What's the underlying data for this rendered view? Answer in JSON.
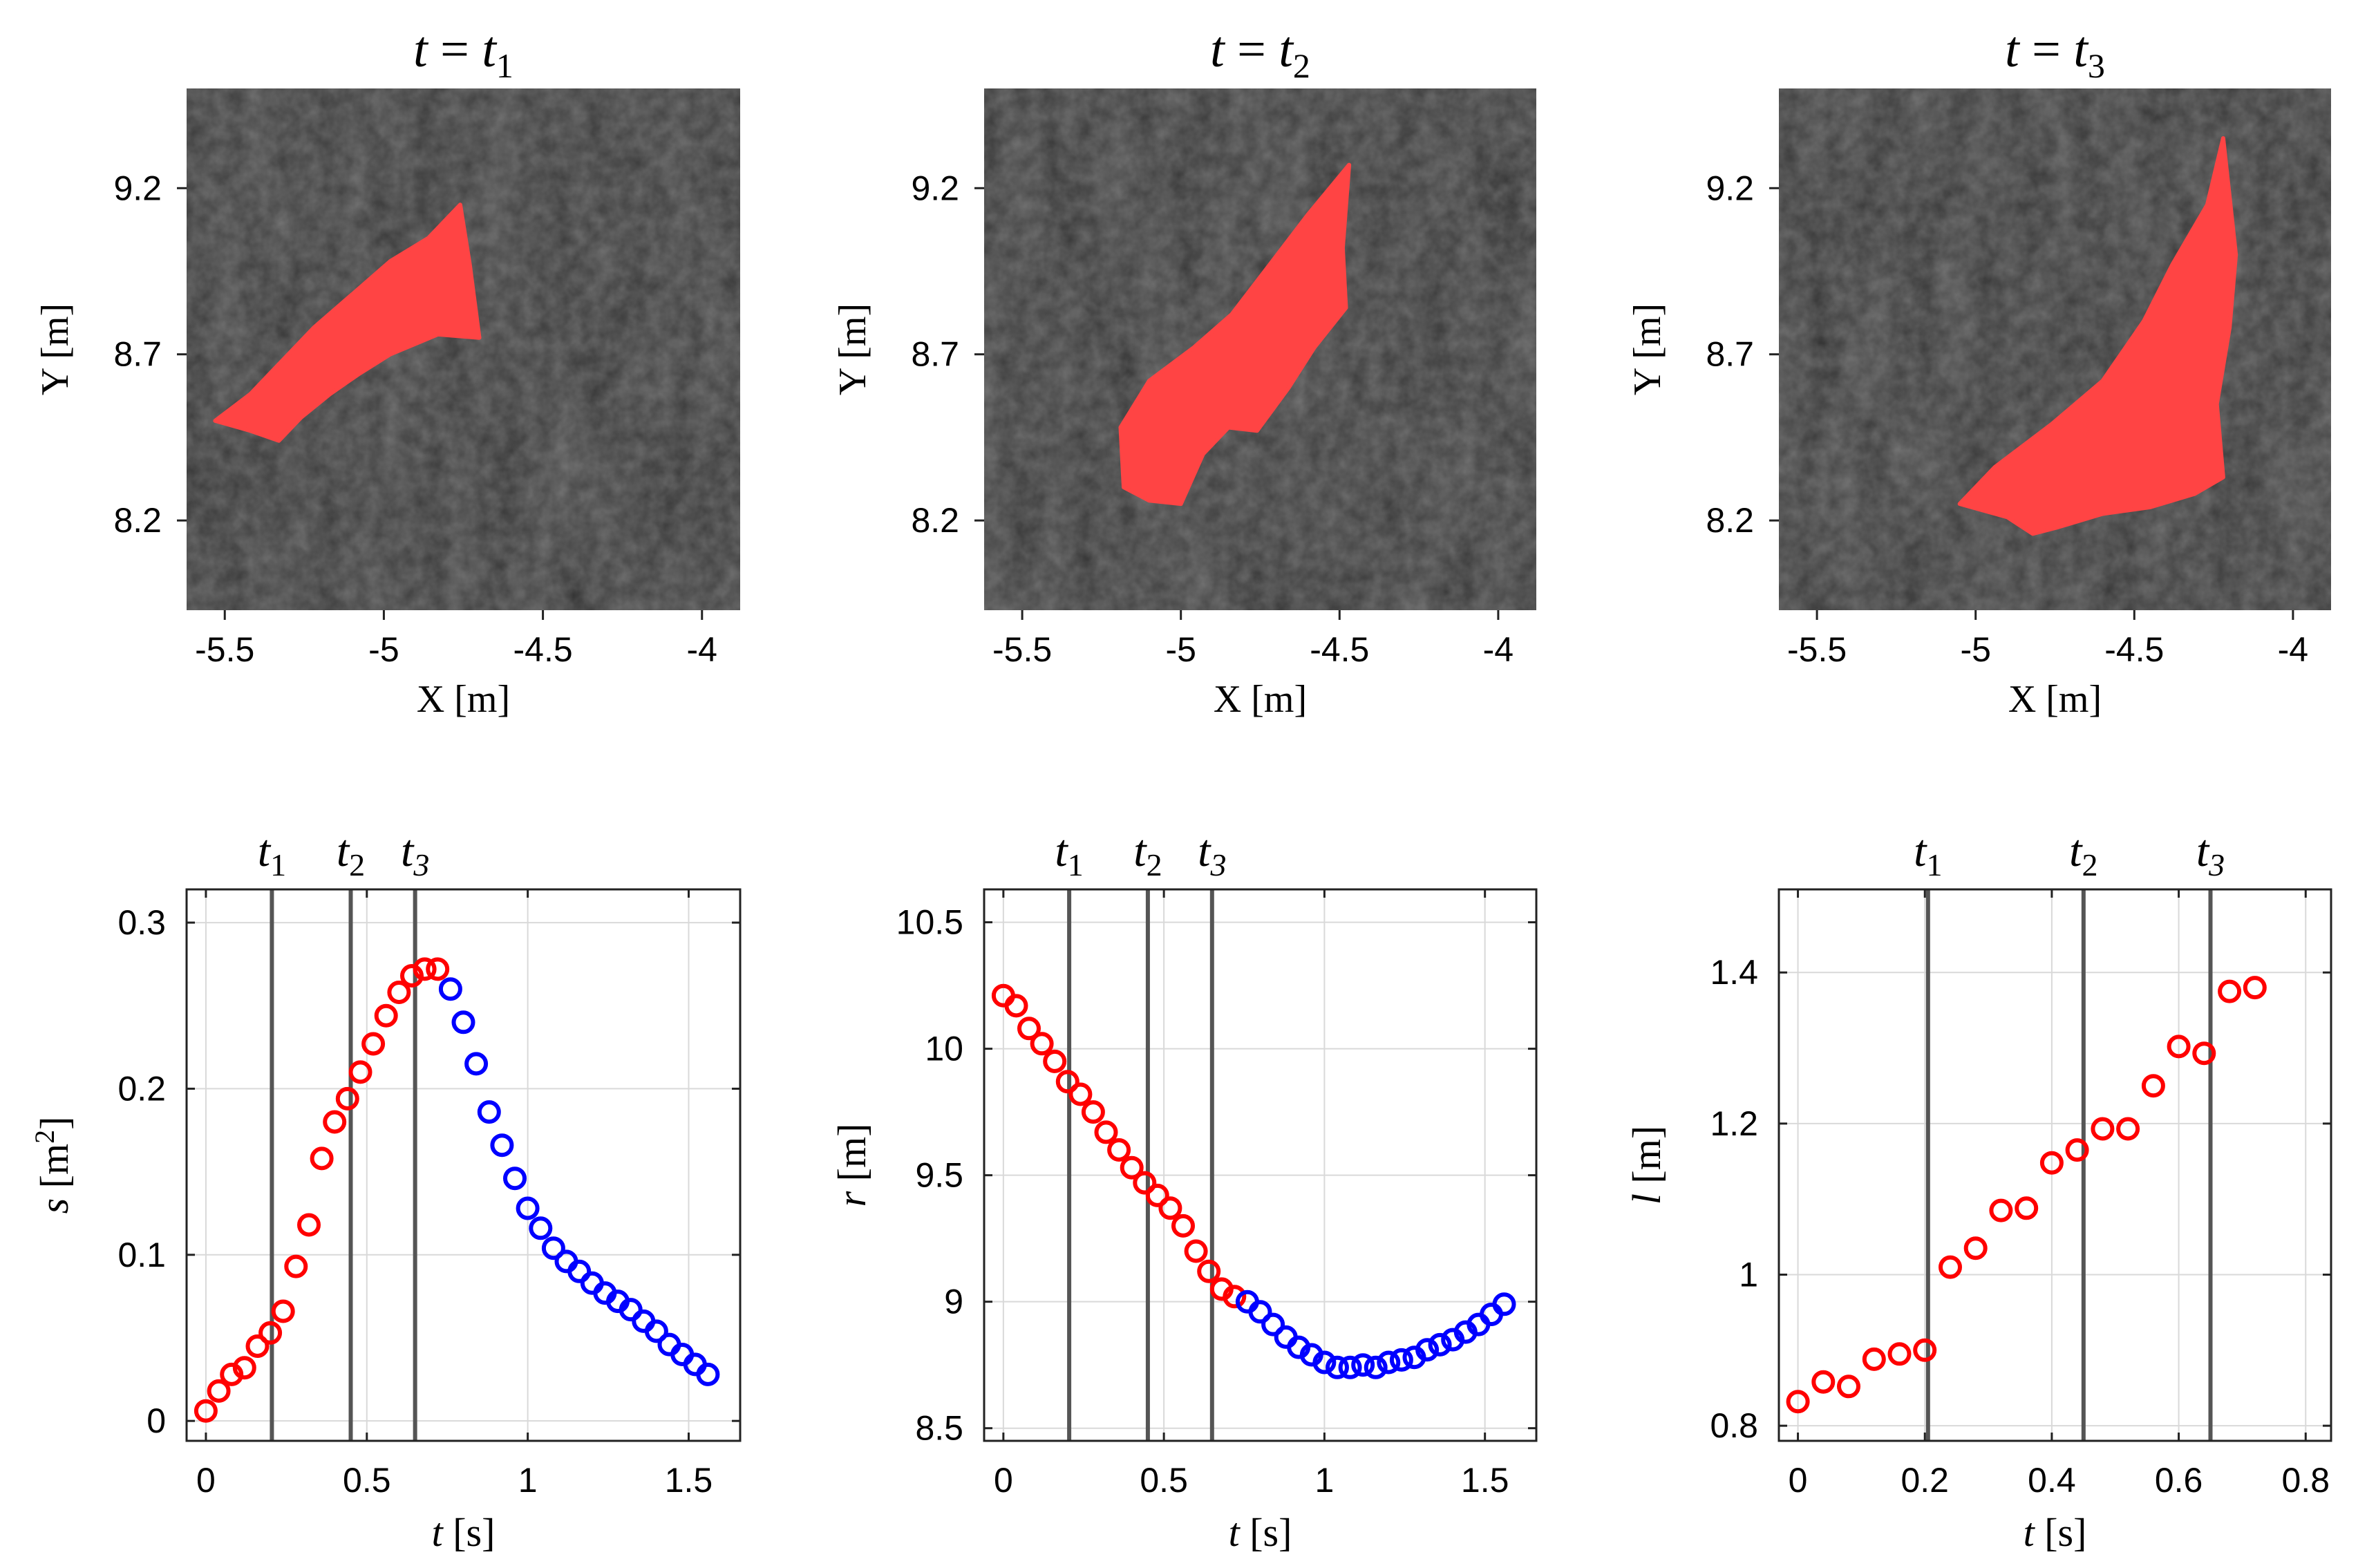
{
  "chart_data": [
    {
      "type": "image",
      "title": {
        "lhs": "t",
        "eq": " = ",
        "var": "t",
        "sub": "1"
      },
      "xlabel": "X [m]",
      "ylabel": "Y [m]",
      "xlim": [
        -5.62,
        -3.88
      ],
      "ylim": [
        7.93,
        9.5
      ],
      "xticks": [
        -5.5,
        -5,
        -4.5,
        -4
      ],
      "xtick_labels": [
        "-5.5",
        "-5",
        "-4.5",
        "-4"
      ],
      "yticks": [
        8.2,
        8.7,
        9.2
      ],
      "ytick_labels": [
        "8.2",
        "8.7",
        "9.2"
      ],
      "mask_color": "#ff4444",
      "mask_outline": [
        [
          -5.53,
          8.5
        ],
        [
          -5.42,
          8.58
        ],
        [
          -5.33,
          8.67
        ],
        [
          -5.22,
          8.78
        ],
        [
          -5.1,
          8.88
        ],
        [
          -4.98,
          8.98
        ],
        [
          -4.86,
          9.05
        ],
        [
          -4.76,
          9.15
        ],
        [
          -4.73,
          8.97
        ],
        [
          -4.7,
          8.75
        ],
        [
          -4.83,
          8.76
        ],
        [
          -4.98,
          8.7
        ],
        [
          -5.08,
          8.64
        ],
        [
          -5.17,
          8.58
        ],
        [
          -5.26,
          8.51
        ],
        [
          -5.33,
          8.44
        ],
        [
          -5.42,
          8.47
        ]
      ]
    },
    {
      "type": "image",
      "title": {
        "lhs": "t",
        "eq": " = ",
        "var": "t",
        "sub": "2"
      },
      "xlabel": "X [m]",
      "ylabel": "Y [m]",
      "xlim": [
        -5.62,
        -3.88
      ],
      "ylim": [
        7.93,
        9.5
      ],
      "xticks": [
        -5.5,
        -5,
        -4.5,
        -4
      ],
      "xtick_labels": [
        "-5.5",
        "-5",
        "-4.5",
        "-4"
      ],
      "yticks": [
        8.2,
        8.7,
        9.2
      ],
      "ytick_labels": [
        "8.2",
        "8.7",
        "9.2"
      ],
      "mask_color": "#ff4444",
      "mask_outline": [
        [
          -5.18,
          8.3
        ],
        [
          -5.19,
          8.48
        ],
        [
          -5.1,
          8.62
        ],
        [
          -4.96,
          8.72
        ],
        [
          -4.84,
          8.82
        ],
        [
          -4.72,
          8.97
        ],
        [
          -4.6,
          9.12
        ],
        [
          -4.47,
          9.27
        ],
        [
          -4.49,
          9.02
        ],
        [
          -4.48,
          8.84
        ],
        [
          -4.58,
          8.72
        ],
        [
          -4.66,
          8.6
        ],
        [
          -4.76,
          8.47
        ],
        [
          -4.85,
          8.48
        ],
        [
          -4.93,
          8.4
        ],
        [
          -5.0,
          8.25
        ],
        [
          -5.1,
          8.26
        ]
      ]
    },
    {
      "type": "image",
      "title": {
        "lhs": "t",
        "eq": " = ",
        "var": "t",
        "sub": "3"
      },
      "xlabel": "X [m]",
      "ylabel": "Y [m]",
      "xlim": [
        -5.62,
        -3.88
      ],
      "ylim": [
        7.93,
        9.5
      ],
      "xticks": [
        -5.5,
        -5,
        -4.5,
        -4
      ],
      "xtick_labels": [
        "-5.5",
        "-5",
        "-4.5",
        "-4"
      ],
      "yticks": [
        8.2,
        8.7,
        9.2
      ],
      "ytick_labels": [
        "8.2",
        "8.7",
        "9.2"
      ],
      "mask_color": "#ff4444",
      "mask_outline": [
        [
          -5.05,
          8.25
        ],
        [
          -4.94,
          8.36
        ],
        [
          -4.76,
          8.49
        ],
        [
          -4.6,
          8.62
        ],
        [
          -4.47,
          8.8
        ],
        [
          -4.38,
          8.97
        ],
        [
          -4.27,
          9.15
        ],
        [
          -4.22,
          9.35
        ],
        [
          -4.18,
          9.0
        ],
        [
          -4.2,
          8.78
        ],
        [
          -4.24,
          8.55
        ],
        [
          -4.22,
          8.33
        ],
        [
          -4.31,
          8.28
        ],
        [
          -4.45,
          8.24
        ],
        [
          -4.6,
          8.22
        ],
        [
          -4.74,
          8.18
        ],
        [
          -4.82,
          8.16
        ],
        [
          -4.9,
          8.21
        ]
      ]
    },
    {
      "type": "scatter",
      "xlabel": "t",
      "xunit": "[s]",
      "ylabel": "s",
      "yunit": "[m",
      "yunit_sup": "2",
      "yunit_close": "]",
      "xlim": [
        -0.06,
        1.66
      ],
      "ylim": [
        -0.012,
        0.32
      ],
      "xticks": [
        0,
        0.5,
        1,
        1.5
      ],
      "xtick_labels": [
        "0",
        "0.5",
        "1",
        "1.5"
      ],
      "yticks": [
        0,
        0.1,
        0.2,
        0.3
      ],
      "ytick_labels": [
        "0",
        "0.1",
        "0.2",
        "0.3"
      ],
      "grid": true,
      "markers": [
        {
          "x": 0.205,
          "label": "t",
          "sub": "1"
        },
        {
          "x": 0.45,
          "label": "t",
          "sub": "2"
        },
        {
          "x": 0.65,
          "label": "t",
          "sub": "3"
        }
      ],
      "series": [
        {
          "color": "#ff0000",
          "x": [
            0.0,
            0.04,
            0.08,
            0.12,
            0.16,
            0.2,
            0.24,
            0.28,
            0.32,
            0.36,
            0.4,
            0.44,
            0.48,
            0.52,
            0.56,
            0.6,
            0.64,
            0.68,
            0.72
          ],
          "y": [
            0.006,
            0.018,
            0.028,
            0.032,
            0.045,
            0.053,
            0.066,
            0.093,
            0.118,
            0.158,
            0.18,
            0.194,
            0.21,
            0.227,
            0.244,
            0.258,
            0.268,
            0.272,
            0.272
          ]
        },
        {
          "color": "#0000ff",
          "x": [
            0.76,
            0.8,
            0.84,
            0.88,
            0.92,
            0.96,
            1.0,
            1.04,
            1.08,
            1.12,
            1.16,
            1.2,
            1.24,
            1.28,
            1.32,
            1.36,
            1.4,
            1.44,
            1.48,
            1.52,
            1.56
          ],
          "y": [
            0.26,
            0.24,
            0.215,
            0.186,
            0.166,
            0.146,
            0.128,
            0.116,
            0.104,
            0.096,
            0.09,
            0.083,
            0.077,
            0.072,
            0.067,
            0.06,
            0.054,
            0.046,
            0.04,
            0.034,
            0.028
          ]
        }
      ]
    },
    {
      "type": "scatter",
      "xlabel": "t",
      "xunit": "[s]",
      "ylabel": "r",
      "yunit": "[m]",
      "xlim": [
        -0.06,
        1.66
      ],
      "ylim": [
        8.45,
        10.63
      ],
      "xticks": [
        0,
        0.5,
        1,
        1.5
      ],
      "xtick_labels": [
        "0",
        "0.5",
        "1",
        "1.5"
      ],
      "yticks": [
        8.5,
        9,
        9.5,
        10,
        10.5
      ],
      "ytick_labels": [
        "8.5",
        "9",
        "9.5",
        "10",
        "10.5"
      ],
      "grid": true,
      "markers": [
        {
          "x": 0.205,
          "label": "t",
          "sub": "1"
        },
        {
          "x": 0.45,
          "label": "t",
          "sub": "2"
        },
        {
          "x": 0.65,
          "label": "t",
          "sub": "3"
        }
      ],
      "series": [
        {
          "color": "#ff0000",
          "x": [
            0.0,
            0.04,
            0.08,
            0.12,
            0.16,
            0.2,
            0.24,
            0.28,
            0.32,
            0.36,
            0.4,
            0.44,
            0.48,
            0.52,
            0.56,
            0.6,
            0.64,
            0.68,
            0.72
          ],
          "y": [
            10.21,
            10.17,
            10.08,
            10.02,
            9.95,
            9.87,
            9.82,
            9.75,
            9.67,
            9.6,
            9.53,
            9.47,
            9.42,
            9.37,
            9.3,
            9.2,
            9.12,
            9.05,
            9.02
          ]
        },
        {
          "color": "#0000ff",
          "x": [
            0.76,
            0.8,
            0.84,
            0.88,
            0.92,
            0.96,
            1.0,
            1.04,
            1.08,
            1.12,
            1.16,
            1.2,
            1.24,
            1.28,
            1.32,
            1.36,
            1.4,
            1.44,
            1.48,
            1.52,
            1.56
          ],
          "y": [
            9.0,
            8.96,
            8.91,
            8.86,
            8.82,
            8.79,
            8.76,
            8.74,
            8.74,
            8.75,
            8.74,
            8.76,
            8.77,
            8.78,
            8.81,
            8.83,
            8.85,
            8.88,
            8.91,
            8.95,
            8.99
          ]
        }
      ]
    },
    {
      "type": "scatter",
      "xlabel": "t",
      "xunit": "[s]",
      "ylabel": "l",
      "yunit": "[m]",
      "xlim": [
        -0.03,
        0.84
      ],
      "ylim": [
        0.78,
        1.51
      ],
      "xticks": [
        0,
        0.2,
        0.4,
        0.6,
        0.8
      ],
      "xtick_labels": [
        "0",
        "0.2",
        "0.4",
        "0.6",
        "0.8"
      ],
      "yticks": [
        0.8,
        1,
        1.2,
        1.4
      ],
      "ytick_labels": [
        "0.8",
        "1",
        "1.2",
        "1.4"
      ],
      "grid": true,
      "markers": [
        {
          "x": 0.205,
          "label": "t",
          "sub": "1"
        },
        {
          "x": 0.45,
          "label": "t",
          "sub": "2"
        },
        {
          "x": 0.65,
          "label": "t",
          "sub": "3"
        }
      ],
      "series": [
        {
          "color": "#ff0000",
          "x": [
            0.0,
            0.04,
            0.08,
            0.12,
            0.16,
            0.2,
            0.24,
            0.28,
            0.32,
            0.36,
            0.4,
            0.44,
            0.48,
            0.52,
            0.56,
            0.6,
            0.64,
            0.68,
            0.72
          ],
          "y": [
            0.832,
            0.858,
            0.852,
            0.888,
            0.895,
            0.9,
            1.01,
            1.035,
            1.085,
            1.088,
            1.148,
            1.165,
            1.193,
            1.193,
            1.25,
            1.302,
            1.293,
            1.375,
            1.38
          ]
        }
      ]
    }
  ]
}
